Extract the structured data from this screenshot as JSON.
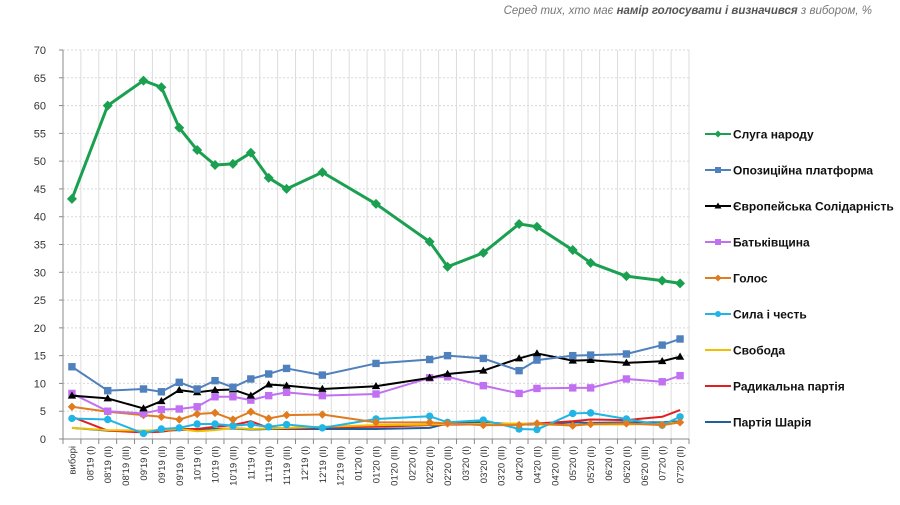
{
  "subtitle": {
    "part1": "Серед тих, хто має ",
    "part2": "намір голосувати і визначився",
    "part3": " з вибором, %"
  },
  "chart_data": {
    "type": "line",
    "title": "",
    "xlabel": "",
    "ylabel": "",
    "ylim": [
      0,
      70
    ],
    "yticks": [
      "0",
      "5",
      "10",
      "15",
      "20",
      "25",
      "30",
      "35",
      "40",
      "45",
      "50",
      "55",
      "60",
      "65",
      "70"
    ],
    "grid": true,
    "legend": "right",
    "categories": [
      "виборі",
      "08'19 (I)",
      "08'19 (II)",
      "08'19 (III)",
      "09'19 (I)",
      "09'19 (II)",
      "09'19 (III)",
      "10'19 (I)",
      "10'19 (II)",
      "10'19 (III)",
      "11'19 (I)",
      "11'19 (II)",
      "11'19 (III)",
      "12'19 (I)",
      "12'19 (II)",
      "12'19 (III)",
      "01'20 (I)",
      "01'20 (II)",
      "01'20 (III)",
      "02'20 (I)",
      "02'20 (II)",
      "02'20 (III)",
      "03'20 (I)",
      "03'20 (II)",
      "03'20 (III)",
      "04'20 (I)",
      "04'20 (II)",
      "04'20 (III)",
      "05'20 (I)",
      "05'20 (II)",
      "06'20 (I)",
      "06'20 (II)",
      "06'20 (III)",
      "07'20 (I)",
      "07'20 (II)"
    ],
    "series": [
      {
        "name": "Слуга народу",
        "color": "#1aa050",
        "marker": "diamond",
        "values": [
          43.2,
          null,
          60,
          null,
          64.5,
          63.3,
          56,
          52,
          49.3,
          49.5,
          51.5,
          47,
          45,
          null,
          48,
          null,
          null,
          42.3,
          null,
          null,
          35.5,
          31,
          null,
          33.5,
          null,
          38.7,
          38.2,
          null,
          34,
          31.7,
          null,
          29.3,
          null,
          28.5,
          28
        ]
      },
      {
        "name": "Опозиційна платформа",
        "color": "#4f81bd",
        "marker": "square",
        "values": [
          13,
          null,
          8.7,
          null,
          9.0,
          8.5,
          10.2,
          9.0,
          10.5,
          9.3,
          10.8,
          11.7,
          12.7,
          null,
          11.5,
          null,
          null,
          13.6,
          null,
          null,
          14.3,
          15.0,
          null,
          14.5,
          null,
          12.3,
          14.2,
          null,
          15.0,
          15.1,
          null,
          15.3,
          null,
          16.9,
          18.0
        ]
      },
      {
        "name": "Європейська Солідарність",
        "color": "#000000",
        "marker": "triangle",
        "values": [
          7.8,
          null,
          7.3,
          null,
          5.5,
          6.8,
          8.8,
          8.4,
          8.8,
          8.9,
          7.8,
          9.8,
          9.6,
          null,
          9.0,
          null,
          null,
          9.5,
          null,
          null,
          11.0,
          11.7,
          null,
          12.3,
          null,
          14.5,
          15.4,
          null,
          14.1,
          14.2,
          null,
          13.7,
          null,
          14.0,
          14.8
        ]
      },
      {
        "name": "Батьківщина",
        "color": "#c070f0",
        "marker": "square",
        "values": [
          8.2,
          null,
          5.0,
          null,
          4.6,
          5.3,
          5.4,
          5.8,
          7.6,
          7.6,
          7.0,
          7.8,
          8.4,
          null,
          7.8,
          null,
          null,
          8.1,
          null,
          null,
          11.0,
          11.2,
          null,
          9.6,
          null,
          8.2,
          9.1,
          null,
          9.2,
          9.2,
          null,
          10.8,
          null,
          10.3,
          11.4
        ]
      },
      {
        "name": "Голос",
        "color": "#e07b20",
        "marker": "diamond",
        "values": [
          5.8,
          null,
          4.9,
          null,
          4.3,
          4.0,
          3.5,
          4.5,
          4.7,
          3.5,
          4.9,
          3.7,
          4.3,
          null,
          4.4,
          null,
          null,
          3.0,
          null,
          null,
          3.0,
          2.8,
          null,
          2.5,
          null,
          2.5,
          2.8,
          null,
          2.4,
          2.7,
          null,
          2.8,
          null,
          2.5,
          3.0
        ]
      },
      {
        "name": "Сила і честь",
        "color": "#1fb5e6",
        "marker": "circle",
        "values": [
          3.7,
          null,
          3.5,
          null,
          1.0,
          1.8,
          2.0,
          2.7,
          2.7,
          2.4,
          2.6,
          2.2,
          2.6,
          null,
          2.0,
          null,
          null,
          3.6,
          null,
          null,
          4.1,
          3.0,
          null,
          3.4,
          null,
          1.8,
          1.7,
          null,
          4.6,
          4.7,
          null,
          3.6,
          null,
          2.5,
          4.0
        ]
      },
      {
        "name": "Свобода",
        "color": "#f0c000",
        "marker": "none",
        "values": [
          2.0,
          null,
          1.6,
          null,
          1.5,
          1.6,
          1.8,
          1.4,
          1.6,
          2.0,
          1.8,
          1.9,
          2.0,
          null,
          2.2,
          null,
          null,
          2.5,
          null,
          null,
          2.6,
          2.7,
          null,
          2.7,
          null,
          2.8,
          2.6,
          null,
          2.5,
          2.6,
          null,
          2.6,
          null,
          2.8,
          3.0
        ]
      },
      {
        "name": "Радикальна партія",
        "color": "#e02020",
        "marker": "none",
        "values": [
          4.0,
          null,
          1.5,
          null,
          1.2,
          1.3,
          1.8,
          1.8,
          2.2,
          2.5,
          3.2,
          2.0,
          1.9,
          null,
          2.1,
          null,
          null,
          2.2,
          null,
          null,
          2.5,
          2.6,
          null,
          2.6,
          null,
          2.7,
          2.8,
          null,
          3.2,
          3.5,
          null,
          3.4,
          null,
          4.0,
          5.2
        ]
      },
      {
        "name": "Партія Шарія",
        "color": "#1f5f9a",
        "marker": "none",
        "values": [
          2.0,
          null,
          1.5,
          null,
          1.4,
          1.5,
          1.6,
          1.7,
          1.8,
          1.9,
          1.7,
          1.8,
          1.8,
          null,
          1.8,
          null,
          null,
          1.8,
          null,
          null,
          2.0,
          2.8,
          null,
          3.0,
          null,
          2.6,
          2.6,
          null,
          3.0,
          2.9,
          null,
          3.0,
          null,
          3.0,
          3.2
        ]
      }
    ]
  }
}
